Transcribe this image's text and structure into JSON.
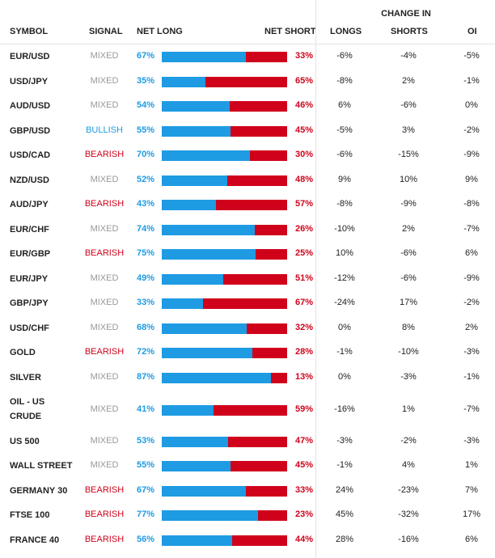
{
  "header": {
    "change_in": "CHANGE IN",
    "symbol": "SYMBOL",
    "signal": "SIGNAL",
    "net_long": "NET LONG",
    "net_short": "NET SHORT",
    "longs": "LONGS",
    "shorts": "SHORTS",
    "oi": "OI"
  },
  "colors": {
    "long": "#1e9be3",
    "short": "#d0021b",
    "mixed": "#999999",
    "bullish": "#1e9be3",
    "bearish": "#d0021b"
  },
  "rows": [
    {
      "symbol": "EUR/USD",
      "signal": "MIXED",
      "net_long": 67,
      "net_short": 33,
      "longs": "-6%",
      "shorts": "-4%",
      "oi": "-5%"
    },
    {
      "symbol": "USD/JPY",
      "signal": "MIXED",
      "net_long": 35,
      "net_short": 65,
      "longs": "-8%",
      "shorts": "2%",
      "oi": "-1%"
    },
    {
      "symbol": "AUD/USD",
      "signal": "MIXED",
      "net_long": 54,
      "net_short": 46,
      "longs": "6%",
      "shorts": "-6%",
      "oi": "0%"
    },
    {
      "symbol": "GBP/USD",
      "signal": "BULLISH",
      "net_long": 55,
      "net_short": 45,
      "longs": "-5%",
      "shorts": "3%",
      "oi": "-2%"
    },
    {
      "symbol": "USD/CAD",
      "signal": "BEARISH",
      "net_long": 70,
      "net_short": 30,
      "longs": "-6%",
      "shorts": "-15%",
      "oi": "-9%"
    },
    {
      "symbol": "NZD/USD",
      "signal": "MIXED",
      "net_long": 52,
      "net_short": 48,
      "longs": "9%",
      "shorts": "10%",
      "oi": "9%"
    },
    {
      "symbol": "AUD/JPY",
      "signal": "BEARISH",
      "net_long": 43,
      "net_short": 57,
      "longs": "-8%",
      "shorts": "-9%",
      "oi": "-8%"
    },
    {
      "symbol": "EUR/CHF",
      "signal": "MIXED",
      "net_long": 74,
      "net_short": 26,
      "longs": "-10%",
      "shorts": "2%",
      "oi": "-7%"
    },
    {
      "symbol": "EUR/GBP",
      "signal": "BEARISH",
      "net_long": 75,
      "net_short": 25,
      "longs": "10%",
      "shorts": "-6%",
      "oi": "6%"
    },
    {
      "symbol": "EUR/JPY",
      "signal": "MIXED",
      "net_long": 49,
      "net_short": 51,
      "longs": "-12%",
      "shorts": "-6%",
      "oi": "-9%"
    },
    {
      "symbol": "GBP/JPY",
      "signal": "MIXED",
      "net_long": 33,
      "net_short": 67,
      "longs": "-24%",
      "shorts": "17%",
      "oi": "-2%"
    },
    {
      "symbol": "USD/CHF",
      "signal": "MIXED",
      "net_long": 68,
      "net_short": 32,
      "longs": "0%",
      "shorts": "8%",
      "oi": "2%"
    },
    {
      "symbol": "GOLD",
      "signal": "BEARISH",
      "net_long": 72,
      "net_short": 28,
      "longs": "-1%",
      "shorts": "-10%",
      "oi": "-3%"
    },
    {
      "symbol": "SILVER",
      "signal": "MIXED",
      "net_long": 87,
      "net_short": 13,
      "longs": "0%",
      "shorts": "-3%",
      "oi": "-1%"
    },
    {
      "symbol": "OIL - US CRUDE",
      "signal": "MIXED",
      "net_long": 41,
      "net_short": 59,
      "longs": "-16%",
      "shorts": "1%",
      "oi": "-7%"
    },
    {
      "symbol": "US 500",
      "signal": "MIXED",
      "net_long": 53,
      "net_short": 47,
      "longs": "-3%",
      "shorts": "-2%",
      "oi": "-3%"
    },
    {
      "symbol": "WALL STREET",
      "signal": "MIXED",
      "net_long": 55,
      "net_short": 45,
      "longs": "-1%",
      "shorts": "4%",
      "oi": "1%"
    },
    {
      "symbol": "GERMANY 30",
      "signal": "BEARISH",
      "net_long": 67,
      "net_short": 33,
      "longs": "24%",
      "shorts": "-23%",
      "oi": "7%"
    },
    {
      "symbol": "FTSE 100",
      "signal": "BEARISH",
      "net_long": 77,
      "net_short": 23,
      "longs": "45%",
      "shorts": "-32%",
      "oi": "17%"
    },
    {
      "symbol": "FRANCE 40",
      "signal": "BEARISH",
      "net_long": 56,
      "net_short": 44,
      "longs": "28%",
      "shorts": "-16%",
      "oi": "6%"
    }
  ]
}
